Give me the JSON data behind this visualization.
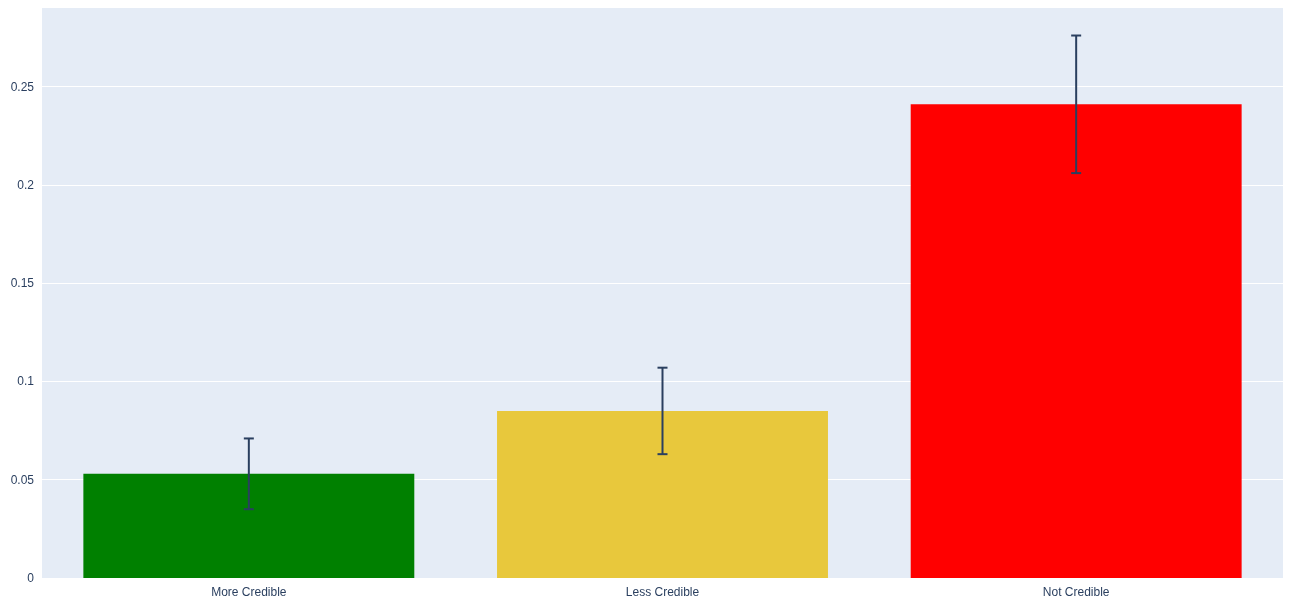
{
  "chart_data": {
    "type": "bar",
    "categories": [
      "More Credible",
      "Less Credible",
      "Not Credible"
    ],
    "values": [
      0.053,
      0.085,
      0.241
    ],
    "colors": [
      "#008000",
      "#e8c83c",
      "#ff0000"
    ],
    "errors": [
      0.018,
      0.022,
      0.035
    ],
    "ylim": [
      0,
      0.29
    ],
    "yticks": [
      0,
      0.05,
      0.1,
      0.15,
      0.2,
      0.25
    ],
    "grid": "y"
  }
}
